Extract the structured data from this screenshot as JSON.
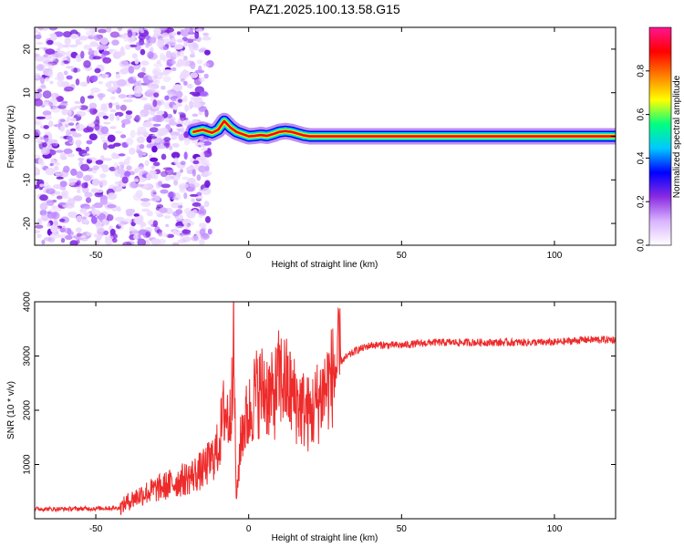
{
  "title": "PAZ1.2025.100.13.58.G15",
  "chart_data": [
    {
      "type": "heatmap",
      "xlabel": "Height of straight line (km)",
      "ylabel": "Frequency (Hz)",
      "xlim": [
        -70,
        120
      ],
      "ylim": [
        -25,
        25
      ],
      "xticks": [
        -50,
        0,
        50,
        100
      ],
      "yticks": [
        -20,
        -10,
        0,
        10,
        20
      ],
      "colorbar": {
        "label": "Normalized spectral amplitude",
        "range": [
          0,
          1
        ],
        "ticks": [
          0.0,
          0.2,
          0.4,
          0.6,
          0.8
        ],
        "colors": [
          "#ffffff",
          "#d9b3ff",
          "#8a2be2",
          "#0000ff",
          "#00c8ff",
          "#00ff7f",
          "#ffff00",
          "#ff7f00",
          "#ff0000",
          "#ff1493"
        ]
      },
      "noise_region_x": [
        -70,
        -15
      ],
      "signal_line": {
        "x": [
          -18,
          -15,
          -12,
          -10,
          -8,
          -6,
          -4,
          -2,
          0,
          2,
          4,
          6,
          8,
          10,
          12,
          14,
          16,
          18,
          20,
          120
        ],
        "freq": [
          1.0,
          1.5,
          0.8,
          1.5,
          3.5,
          2.0,
          1.0,
          0.5,
          0.0,
          0.1,
          0.3,
          0.1,
          0.5,
          1.0,
          1.2,
          1.0,
          0.6,
          0.2,
          0.0,
          0.0
        ]
      }
    },
    {
      "type": "line",
      "xlabel": "Height of straight line (km)",
      "ylabel": "SNR (10 * v/v)",
      "xlim": [
        -70,
        120
      ],
      "ylim": [
        0,
        4000
      ],
      "xticks": [
        -50,
        0,
        50,
        100
      ],
      "yticks": [
        1000,
        2000,
        3000,
        4000
      ],
      "color": "#ee2b2b",
      "x": [
        -70,
        -60,
        -50,
        -42,
        -40,
        -35,
        -30,
        -25,
        -20,
        -15,
        -12,
        -10,
        -8,
        -6,
        -5,
        -4,
        -3,
        -2,
        0,
        2,
        5,
        8,
        10,
        12,
        15,
        20,
        25,
        30,
        35,
        40,
        45,
        50,
        60,
        70,
        80,
        90,
        100,
        110,
        120
      ],
      "y": [
        180,
        180,
        190,
        200,
        300,
        450,
        550,
        650,
        750,
        900,
        1100,
        1300,
        2000,
        1800,
        3500,
        250,
        1200,
        1700,
        1900,
        2300,
        2400,
        2200,
        2600,
        2500,
        2200,
        1900,
        2400,
        2900,
        3100,
        3200,
        3200,
        3200,
        3250,
        3250,
        3250,
        3250,
        3250,
        3300,
        3300
      ]
    }
  ]
}
